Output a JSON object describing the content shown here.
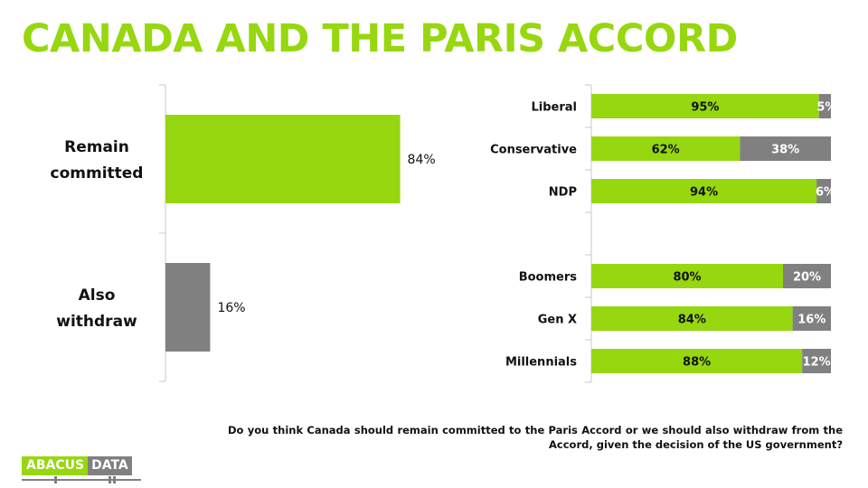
{
  "title": "CANADA AND THE PARIS ACCORD",
  "question": "Do you think Canada should remain committed to the Paris Accord or we should also withdraw from the Accord, given the decision of the US government?",
  "logo": {
    "left": "ABACUS",
    "right": "DATA"
  },
  "colors": {
    "green": "#97d70f",
    "gray": "#808080",
    "axis": "#c8c8c8"
  },
  "chart_data": [
    {
      "type": "bar",
      "orientation": "horizontal",
      "categories": [
        "Remain committed",
        "Also withdraw"
      ],
      "category_lines": [
        [
          "Remain",
          "committed"
        ],
        [
          "Also",
          "withdraw"
        ]
      ],
      "values": [
        84,
        16
      ],
      "value_labels": [
        "84%",
        "16%"
      ],
      "colors": [
        "#97d70f",
        "#808080"
      ],
      "xlim": [
        0,
        100
      ],
      "title": "",
      "xlabel": "",
      "ylabel": ""
    },
    {
      "type": "bar",
      "orientation": "horizontal",
      "stacked": true,
      "categories": [
        "Liberal",
        "Conservative",
        "NDP",
        "",
        "Boomers",
        "Gen X",
        "Millennials"
      ],
      "series": [
        {
          "values": [
            95,
            62,
            94,
            null,
            80,
            84,
            88
          ],
          "labels": [
            "95%",
            "62%",
            "94%",
            "",
            "80%",
            "84%",
            "88%"
          ],
          "color": "#97d70f"
        },
        {
          "values": [
            5,
            38,
            6,
            null,
            20,
            16,
            12
          ],
          "labels": [
            "5%",
            "38%",
            "6%",
            "",
            "20%",
            "16%",
            "12%"
          ],
          "color": "#808080"
        }
      ],
      "xlim": [
        0,
        100
      ],
      "title": "",
      "xlabel": "",
      "ylabel": ""
    }
  ]
}
